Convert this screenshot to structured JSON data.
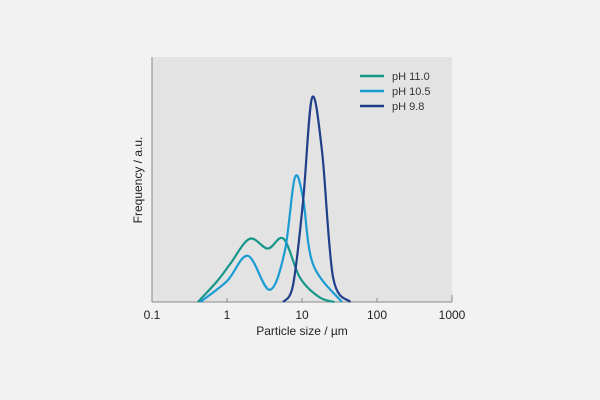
{
  "chart_data": {
    "type": "line",
    "title": "",
    "xlabel": "Particle size / µm",
    "ylabel": "Frequency / a.u.",
    "xscale": "log",
    "xlim": [
      0.1,
      1000
    ],
    "ylim": [
      0,
      100
    ],
    "xticks": [
      "0.1",
      "1",
      "10",
      "100",
      "1000"
    ],
    "xtick_values": [
      0.1,
      1,
      10,
      100,
      1000
    ],
    "grid": false,
    "legend_position": "top-right",
    "background": "#e3e3e3",
    "series": [
      {
        "name": "pH 11.0",
        "color": "#17968a",
        "x": [
          0.41,
          0.74,
          1.1,
          2.0,
          3.5,
          5.7,
          9.4,
          17,
          27
        ],
        "y": [
          0,
          8.6,
          15.6,
          26,
          22,
          26,
          10,
          2,
          0
        ]
      },
      {
        "name": "pH 10.5",
        "color": "#1b9cd2",
        "x": [
          0.44,
          1.0,
          1.9,
          3.7,
          5.9,
          8.0,
          10.3,
          14,
          34
        ],
        "y": [
          0,
          8.6,
          19,
          5,
          21,
          51,
          43,
          15.6,
          0
        ]
      },
      {
        "name": "pH 9.8",
        "color": "#1f3f8a",
        "x": [
          5.6,
          7.6,
          10.3,
          13.6,
          18.5,
          26,
          44
        ],
        "y": [
          0,
          7,
          41,
          84,
          62,
          10,
          0
        ]
      }
    ]
  }
}
